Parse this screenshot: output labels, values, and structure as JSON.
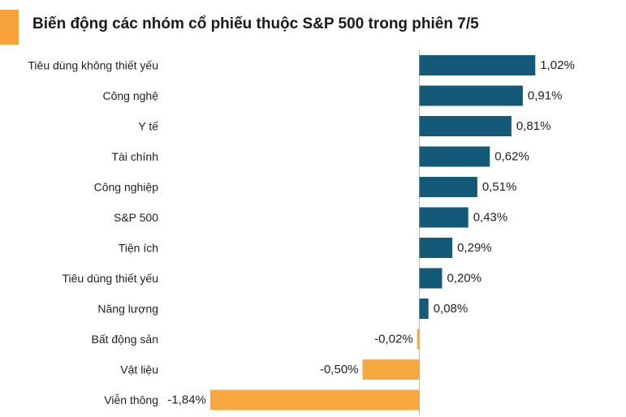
{
  "title": "Biến động các nhóm cổ phiếu thuộc S&P 500 trong phiên 7/5",
  "colors": {
    "positive": "#145a78",
    "negative": "#f7a83e",
    "accent": "#f7a13a"
  },
  "chart_data": {
    "type": "bar",
    "orientation": "horizontal",
    "title": "Biến động các nhóm cổ phiếu thuộc S&P 500 trong phiên 7/5",
    "categories": [
      "Tiêu dùng không thiết yếu",
      "Công nghệ",
      "Y tế",
      "Tài chính",
      "Công nghiệp",
      "S&P 500",
      "Tiện ích",
      "Tiêu dùng thiết yếu",
      "Năng lượng",
      "Bất động sản",
      "Vật liệu",
      "Viễn thông"
    ],
    "values": [
      1.02,
      0.91,
      0.81,
      0.62,
      0.51,
      0.43,
      0.29,
      0.2,
      0.08,
      -0.02,
      -0.5,
      -1.84
    ],
    "data_labels": [
      "1,02%",
      "0,91%",
      "0,81%",
      "0,62%",
      "0,51%",
      "0,43%",
      "0,29%",
      "0,20%",
      "0,08%",
      "-0,02%",
      "-0,50%",
      "-1,84%"
    ],
    "xlabel": "",
    "ylabel": "",
    "xlim": [
      -1.84,
      1.42
    ],
    "grid": false,
    "legend": "none"
  }
}
